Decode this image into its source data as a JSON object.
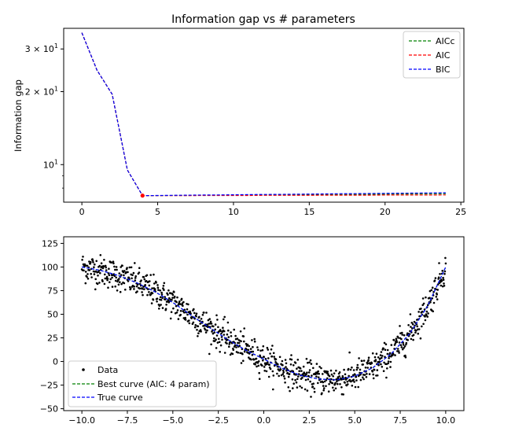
{
  "chart_data": [
    {
      "type": "line",
      "title": "Information gap vs # parameters",
      "xlabel": "",
      "ylabel": "Information gap",
      "y_scale": "log",
      "xlim": [
        -1.2,
        25.2
      ],
      "ylim": [
        7.0,
        36.5
      ],
      "x_ticks": [
        "0",
        "5",
        "10",
        "15",
        "20",
        "25"
      ],
      "x_tick_values": [
        0,
        5,
        10,
        15,
        20,
        25
      ],
      "y_ticks": [
        "10^1",
        "2 × 10^1",
        "3 × 10^1"
      ],
      "y_tick_values": [
        10,
        20,
        30
      ],
      "legend_position": "upper right",
      "grid": false,
      "x": [
        0,
        1,
        2,
        3,
        4,
        5,
        6,
        7,
        8,
        9,
        10,
        11,
        12,
        13,
        14,
        15,
        16,
        17,
        18,
        19,
        20,
        21,
        22,
        23,
        24
      ],
      "series": [
        {
          "name": "AICc",
          "color": "#008000",
          "values": [
            35.0,
            24.5,
            19.5,
            9.5,
            7.45,
            7.45,
            7.46,
            7.46,
            7.47,
            7.47,
            7.48,
            7.49,
            7.49,
            7.5,
            7.51,
            7.52,
            7.52,
            7.53,
            7.54,
            7.55,
            7.55,
            7.56,
            7.57,
            7.58,
            7.59
          ]
        },
        {
          "name": "AIC",
          "color": "#ff0000",
          "values": [
            35.0,
            24.5,
            19.5,
            9.5,
            7.45,
            7.45,
            7.45,
            7.45,
            7.46,
            7.46,
            7.46,
            7.46,
            7.47,
            7.47,
            7.47,
            7.47,
            7.48,
            7.48,
            7.48,
            7.48,
            7.49,
            7.49,
            7.49,
            7.49,
            7.5
          ]
        },
        {
          "name": "BIC",
          "color": "#0000ff",
          "values": [
            35.0,
            24.5,
            19.5,
            9.5,
            7.45,
            7.46,
            7.47,
            7.48,
            7.49,
            7.5,
            7.51,
            7.52,
            7.53,
            7.54,
            7.55,
            7.56,
            7.57,
            7.58,
            7.59,
            7.6,
            7.61,
            7.62,
            7.63,
            7.64,
            7.65
          ]
        }
      ],
      "highlight_point": {
        "x": 4,
        "y": 7.45,
        "color": "#ff0000"
      }
    },
    {
      "type": "scatter",
      "title": "",
      "xlabel": "",
      "ylabel": "",
      "xlim": [
        -11.0,
        11.0
      ],
      "ylim": [
        -52,
        132
      ],
      "x_ticks": [
        "−10.0",
        "−7.5",
        "−5.0",
        "−2.5",
        "0.0",
        "2.5",
        "5.0",
        "7.5",
        "10.0"
      ],
      "x_tick_values": [
        -10,
        -7.5,
        -5,
        -2.5,
        0,
        2.5,
        5,
        7.5,
        10
      ],
      "y_ticks": [
        "−50",
        "−25",
        "0",
        "25",
        "50",
        "75",
        "100",
        "125"
      ],
      "y_tick_values": [
        -50,
        -25,
        0,
        25,
        50,
        75,
        100,
        125
      ],
      "legend_position": "lower left",
      "grid": false,
      "scatter_series": {
        "name": "Data",
        "color": "#000000",
        "x_range": [
          -10,
          10
        ],
        "count": 1000,
        "noise_sd": 8
      },
      "series": [
        {
          "name": "Best curve (AIC: 4 param)",
          "color": "#008000",
          "style": "dashed",
          "x": [
            -10,
            -9,
            -8,
            -7,
            -6,
            -5,
            -4,
            -3,
            -2,
            -1,
            0,
            1,
            2,
            3,
            4,
            5,
            6,
            7,
            8,
            9,
            10
          ],
          "values": [
            100.0,
            96.5,
            91.0,
            83.5,
            74.0,
            62.5,
            49.0,
            36.0,
            23.5,
            12.0,
            2.5,
            -7.0,
            -14.5,
            -18.5,
            -19.5,
            -15.5,
            -6.5,
            8.0,
            29.0,
            58.5,
            100.0
          ]
        },
        {
          "name": "True curve",
          "color": "#0000ff",
          "style": "dashed",
          "x": [
            -10,
            -9,
            -8,
            -7,
            -6,
            -5,
            -4,
            -3,
            -2,
            -1,
            0,
            1,
            2,
            3,
            4,
            5,
            6,
            7,
            8,
            9,
            10
          ],
          "values": [
            100.0,
            96.5,
            91.0,
            83.5,
            74.0,
            62.5,
            49.0,
            36.0,
            23.5,
            12.0,
            2.5,
            -7.0,
            -14.5,
            -18.5,
            -19.5,
            -15.5,
            -6.5,
            8.0,
            29.0,
            58.5,
            100.0
          ]
        }
      ]
    }
  ]
}
